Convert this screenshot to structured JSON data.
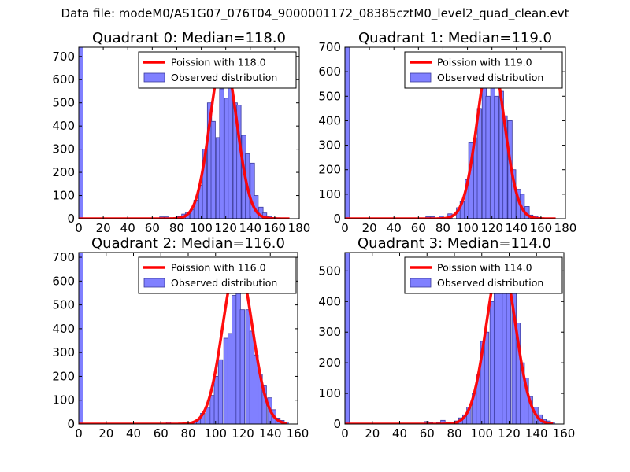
{
  "suptitle": "Data file: modeM0/AS1G07_076T04_9000001172_08385cztM0_level2_quad_clean.evt",
  "colors": {
    "bar_fill": "#8080ff",
    "bar_edge": "#3a3a9c",
    "fit_line": "#ff0000",
    "axes": "#000000"
  },
  "legend": {
    "fit_prefix": "Poission with ",
    "observed_label": "Observed distribution"
  },
  "chart_data": [
    {
      "type": "bar",
      "title": "Quadrant 0: Median=118.0",
      "median": 118.0,
      "fit_label": "Poission with 118.0",
      "xlim": [
        0,
        180
      ],
      "ylim": [
        0,
        740
      ],
      "xticks": [
        0,
        20,
        40,
        60,
        80,
        100,
        120,
        140,
        160,
        180
      ],
      "yticks": [
        0,
        100,
        200,
        300,
        400,
        500,
        600,
        700
      ],
      "bin_width": 3.5,
      "bins": [
        [
          0,
          740
        ],
        [
          66,
          8
        ],
        [
          70,
          8
        ],
        [
          80,
          10
        ],
        [
          84,
          20
        ],
        [
          87,
          25
        ],
        [
          91,
          40
        ],
        [
          94,
          80
        ],
        [
          98,
          145
        ],
        [
          101,
          300
        ],
        [
          105,
          500
        ],
        [
          108,
          420
        ],
        [
          112,
          350
        ],
        [
          115,
          560
        ],
        [
          119,
          520
        ],
        [
          122,
          670
        ],
        [
          126,
          500
        ],
        [
          129,
          490
        ],
        [
          133,
          360
        ],
        [
          136,
          280
        ],
        [
          140,
          240
        ],
        [
          143,
          100
        ],
        [
          147,
          50
        ],
        [
          150,
          25
        ],
        [
          154,
          10
        ],
        [
          157,
          5
        ],
        [
          161,
          4
        ]
      ],
      "fit_peak": 700
    },
    {
      "type": "bar",
      "title": "Quadrant 1: Median=119.0",
      "median": 119.0,
      "fit_label": "Poission with 119.0",
      "xlim": [
        0,
        180
      ],
      "ylim": [
        0,
        700
      ],
      "xticks": [
        0,
        20,
        40,
        60,
        80,
        100,
        120,
        140,
        160,
        180
      ],
      "yticks": [
        0,
        100,
        200,
        300,
        400,
        500,
        600,
        700
      ],
      "bin_width": 3.5,
      "bins": [
        [
          0,
          700
        ],
        [
          66,
          8
        ],
        [
          70,
          8
        ],
        [
          77,
          10
        ],
        [
          84,
          20
        ],
        [
          91,
          45
        ],
        [
          94,
          70
        ],
        [
          98,
          160
        ],
        [
          101,
          310
        ],
        [
          105,
          330
        ],
        [
          108,
          450
        ],
        [
          112,
          570
        ],
        [
          115,
          500
        ],
        [
          119,
          630
        ],
        [
          122,
          500
        ],
        [
          126,
          520
        ],
        [
          129,
          420
        ],
        [
          133,
          400
        ],
        [
          136,
          200
        ],
        [
          140,
          120
        ],
        [
          143,
          100
        ],
        [
          147,
          50
        ],
        [
          150,
          15
        ],
        [
          154,
          10
        ],
        [
          157,
          5
        ]
      ],
      "fit_peak": 670
    },
    {
      "type": "bar",
      "title": "Quadrant 2: Median=116.0",
      "median": 116.0,
      "fit_label": "Poission with 116.0",
      "xlim": [
        0,
        160
      ],
      "ylim": [
        0,
        720
      ],
      "xticks": [
        0,
        20,
        40,
        60,
        80,
        100,
        120,
        140,
        160
      ],
      "yticks": [
        0,
        100,
        200,
        300,
        400,
        500,
        600,
        700
      ],
      "bin_width": 3.2,
      "bins": [
        [
          0,
          720
        ],
        [
          64,
          8
        ],
        [
          83,
          10
        ],
        [
          86,
          20
        ],
        [
          89,
          45
        ],
        [
          93,
          70
        ],
        [
          96,
          120
        ],
        [
          99,
          200
        ],
        [
          102,
          270
        ],
        [
          106,
          360
        ],
        [
          109,
          380
        ],
        [
          112,
          540
        ],
        [
          115,
          650
        ],
        [
          118,
          480
        ],
        [
          122,
          480
        ],
        [
          125,
          390
        ],
        [
          128,
          290
        ],
        [
          131,
          210
        ],
        [
          134,
          160
        ],
        [
          138,
          110
        ],
        [
          141,
          60
        ],
        [
          144,
          25
        ],
        [
          147,
          15
        ],
        [
          150,
          8
        ]
      ],
      "fit_peak": 680
    },
    {
      "type": "bar",
      "title": "Quadrant 3: Median=114.0",
      "median": 114.0,
      "fit_label": "Poission with 114.0",
      "xlim": [
        0,
        160
      ],
      "ylim": [
        0,
        560
      ],
      "xticks": [
        0,
        20,
        40,
        60,
        80,
        100,
        120,
        140,
        160
      ],
      "yticks": [
        0,
        100,
        200,
        300,
        400,
        500
      ],
      "bin_width": 3.2,
      "bins": [
        [
          0,
          560
        ],
        [
          58,
          8
        ],
        [
          61,
          5
        ],
        [
          67,
          5
        ],
        [
          70,
          12
        ],
        [
          74,
          5
        ],
        [
          80,
          10
        ],
        [
          83,
          20
        ],
        [
          86,
          30
        ],
        [
          89,
          55
        ],
        [
          93,
          100
        ],
        [
          96,
          160
        ],
        [
          99,
          270
        ],
        [
          102,
          300
        ],
        [
          106,
          400
        ],
        [
          109,
          480
        ],
        [
          112,
          490
        ],
        [
          115,
          520
        ],
        [
          118,
          490
        ],
        [
          122,
          440
        ],
        [
          125,
          330
        ],
        [
          128,
          200
        ],
        [
          131,
          150
        ],
        [
          134,
          90
        ],
        [
          138,
          55
        ],
        [
          141,
          30
        ],
        [
          144,
          15
        ],
        [
          147,
          10
        ],
        [
          150,
          5
        ]
      ],
      "fit_peak": 535
    }
  ]
}
